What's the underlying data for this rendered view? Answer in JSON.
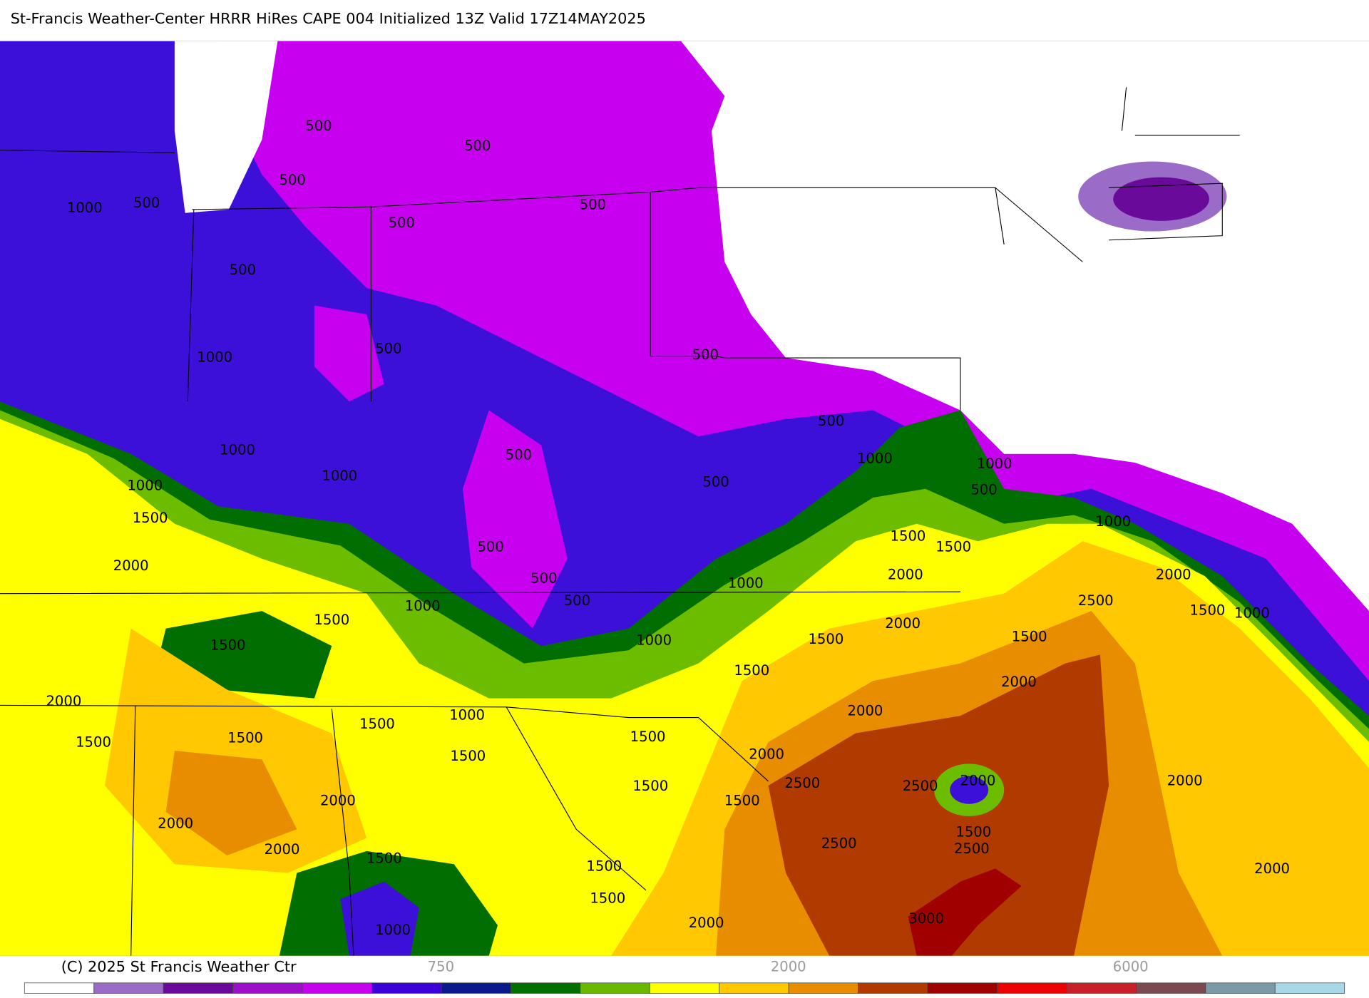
{
  "header": {
    "title": "St-Francis Weather-Center HRRR HiRes CAPE  004 Initialized  13Z Valid 17Z14MAY2025"
  },
  "contour_labels": [
    "500",
    "500",
    "500",
    "1000",
    "500",
    "500",
    "500",
    "500",
    "1000",
    "500",
    "500",
    "500",
    "1000",
    "500",
    "1000",
    "1000",
    "1000",
    "1000",
    "500",
    "500",
    "1500",
    "1000",
    "1500",
    "1500",
    "500",
    "2000",
    "500",
    "2000",
    "2000",
    "1000",
    "500",
    "2500",
    "1000",
    "1500",
    "1000",
    "1500",
    "2000",
    "1500",
    "1500",
    "1000",
    "1500",
    "1500",
    "2000",
    "2000",
    "2000",
    "1000",
    "1500",
    "1500",
    "1500",
    "1500",
    "2000",
    "1500",
    "2000",
    "2500",
    "2500",
    "2000",
    "1500",
    "2000",
    "1500",
    "2000",
    "1500",
    "2500",
    "2000",
    "2500",
    "1500",
    "1500",
    "2000",
    "1500",
    "3000",
    "2000",
    "1000"
  ],
  "colorbar": {
    "labels": [
      "750",
      "2000",
      "6000"
    ]
  },
  "footer": {
    "copyright": "(C) 2025 St Francis Weather Ctr"
  }
}
